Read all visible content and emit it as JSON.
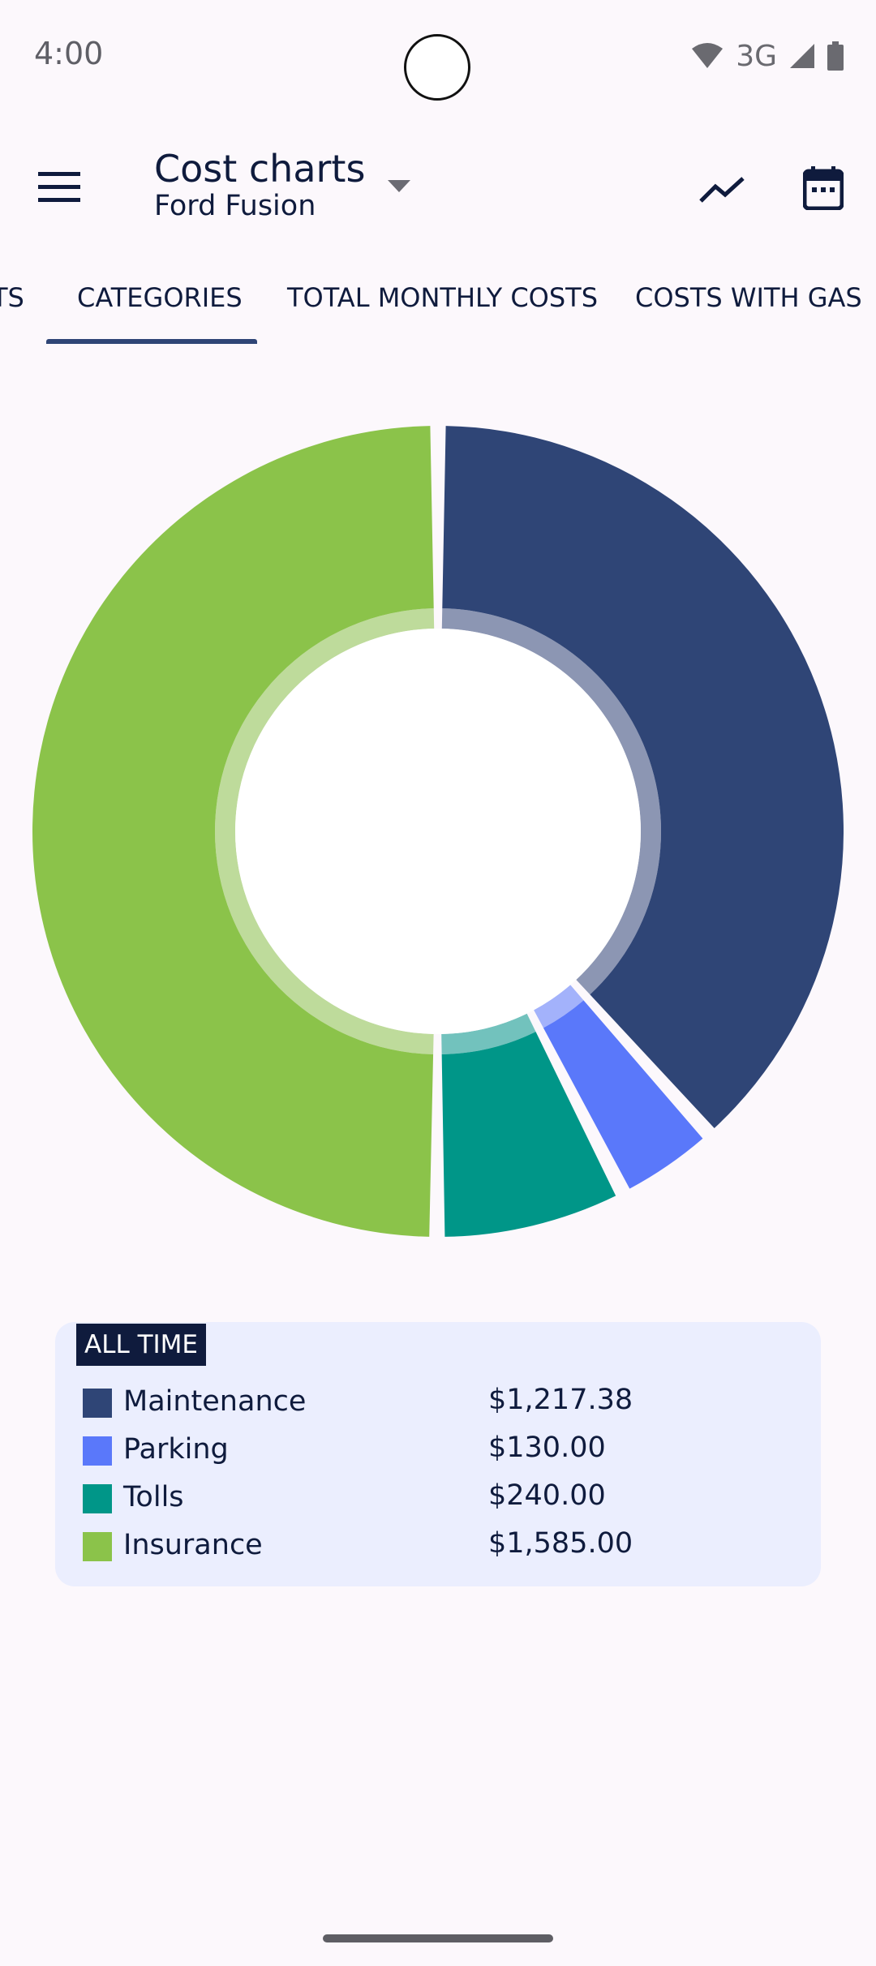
{
  "status_bar": {
    "time": "4:00",
    "network": "3G"
  },
  "app_bar": {
    "title": "Cost charts",
    "subtitle": "Ford Fusion"
  },
  "tabs": [
    {
      "label": "TS"
    },
    {
      "label": "CATEGORIES",
      "selected": true
    },
    {
      "label": "TOTAL MONTHLY COSTS"
    },
    {
      "label": "COSTS WITH GAS"
    }
  ],
  "chart_data": {
    "type": "pie",
    "style": "donut",
    "categories": [
      "Maintenance",
      "Parking",
      "Tolls",
      "Insurance"
    ],
    "values": [
      1217.38,
      130.0,
      240.0,
      1585.0
    ],
    "colors": [
      "#2f4576",
      "#5a78fa",
      "#009688",
      "#8bc34a"
    ],
    "legend_title": "ALL TIME"
  },
  "legend": {
    "title": "ALL TIME",
    "items": [
      {
        "name": "Maintenance",
        "value": "$1,217.38",
        "color": "#2f4576"
      },
      {
        "name": "Parking",
        "value": "$130.00",
        "color": "#5a78fa"
      },
      {
        "name": "Tolls",
        "value": "$240.00",
        "color": "#009688"
      },
      {
        "name": "Insurance",
        "value": "$1,585.00",
        "color": "#8bc34a"
      }
    ]
  },
  "icons": {
    "menu": "menu-icon",
    "dropdown": "dropdown-arrow-icon",
    "chart": "trending-line-icon",
    "calendar": "calendar-icon"
  }
}
